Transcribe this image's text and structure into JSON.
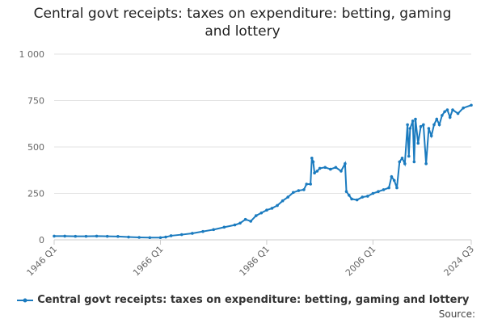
{
  "chart_data": {
    "type": "line",
    "title": "Central govt receipts: taxes on expenditure: betting, gaming and lottery",
    "source": "Source:",
    "x": [
      1946,
      1948,
      1950,
      1952,
      1954,
      1956,
      1958,
      1960,
      1962,
      1964,
      1966,
      1967,
      1968,
      1970,
      1972,
      1974,
      1976,
      1978,
      1980,
      1981,
      1982,
      1983,
      1984,
      1985,
      1986,
      1987,
      1988,
      1989,
      1990,
      1991,
      1992,
      1993,
      1993.5,
      1994.25,
      1994.5,
      1994.75,
      1995,
      1995.5,
      1996,
      1997,
      1998,
      1999,
      2000,
      2000.75,
      2001,
      2001.5,
      2002,
      2003,
      2004,
      2005,
      2006,
      2007,
      2008,
      2009,
      2009.5,
      2010,
      2010.5,
      2011,
      2011.5,
      2012,
      2012.5,
      2012.75,
      2013,
      2013.5,
      2013.75,
      2014,
      2014.5,
      2015,
      2015.5,
      2016,
      2016.5,
      2017,
      2017.5,
      2018,
      2018.5,
      2019,
      2019.5,
      2020,
      2020.5,
      2021,
      2022,
      2023,
      2024.5
    ],
    "series": [
      {
        "name": "Central govt receipts: taxes on expenditure: betting, gaming and lottery",
        "color": "#1b7bbf",
        "values": [
          20,
          20,
          19,
          19,
          20,
          19,
          18,
          15,
          13,
          12,
          12,
          15,
          22,
          28,
          35,
          45,
          55,
          68,
          80,
          90,
          110,
          100,
          130,
          145,
          160,
          170,
          185,
          210,
          230,
          255,
          265,
          270,
          300,
          300,
          440,
          420,
          360,
          370,
          385,
          390,
          380,
          390,
          370,
          410,
          260,
          240,
          220,
          215,
          230,
          235,
          250,
          260,
          270,
          280,
          340,
          320,
          280,
          420,
          440,
          410,
          620,
          450,
          600,
          640,
          420,
          650,
          520,
          610,
          620,
          410,
          600,
          560,
          620,
          650,
          620,
          670,
          690,
          700,
          660,
          700,
          680,
          710,
          725
        ]
      }
    ],
    "xlim": [
      1946,
      2024.5
    ],
    "xticks": [
      {
        "value": 1946,
        "label": "1946 Q1"
      },
      {
        "value": 1966,
        "label": "1966 Q1"
      },
      {
        "value": 1986,
        "label": "1986 Q1"
      },
      {
        "value": 2006,
        "label": "2006 Q1"
      },
      {
        "value": 2024.5,
        "label": "2024 Q3"
      }
    ],
    "ylim": [
      0,
      1000
    ],
    "yticks": [
      0,
      250,
      500,
      750,
      {
        "value": 1000,
        "label": "1 000"
      }
    ],
    "grid": true
  }
}
